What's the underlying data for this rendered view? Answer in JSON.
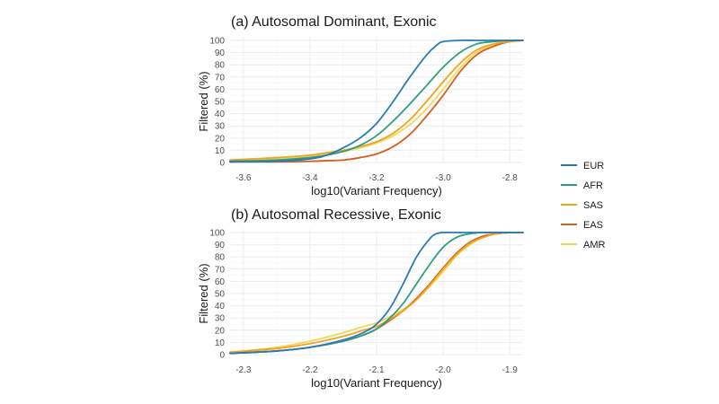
{
  "colors": {
    "EUR": "#2a7ab5",
    "AFR": "#2e9e83",
    "SAS": "#f2a21c",
    "EAS": "#d35f1e",
    "AMR": "#eed85a"
  },
  "legend": [
    {
      "label": "EUR",
      "key": "EUR"
    },
    {
      "label": "AFR",
      "key": "AFR"
    },
    {
      "label": "SAS",
      "key": "SAS"
    },
    {
      "label": "EAS",
      "key": "EAS"
    },
    {
      "label": "AMR",
      "key": "AMR"
    }
  ],
  "chart_data": [
    {
      "type": "line",
      "title": "(a) Autosomal Dominant, Exonic",
      "xlabel": "log10(Variant Frequency)",
      "ylabel": "Filtered (%)",
      "xlim": [
        -3.64,
        -2.76
      ],
      "ylim": [
        0,
        100
      ],
      "xticks": [
        -3.6,
        -3.4,
        -3.2,
        -3.0,
        -2.8
      ],
      "xtick_labels": [
        "-3.6",
        "-3.4",
        "-3.2",
        "-3.0",
        "-2.8"
      ],
      "yticks": [
        0,
        10,
        20,
        30,
        40,
        50,
        60,
        70,
        80,
        90,
        100
      ],
      "grid": true,
      "legend_position": "right",
      "series": [
        {
          "name": "EUR",
          "x": [
            -3.64,
            -3.5,
            -3.4,
            -3.35,
            -3.3,
            -3.25,
            -3.2,
            -3.15,
            -3.1,
            -3.05,
            -3.02,
            -3.0,
            -2.95,
            -2.9,
            -2.8,
            -2.76
          ],
          "y": [
            0.5,
            1,
            3,
            6,
            12,
            20,
            32,
            50,
            70,
            88,
            96,
            99,
            100,
            100,
            100,
            100
          ]
        },
        {
          "name": "AFR",
          "x": [
            -3.64,
            -3.5,
            -3.4,
            -3.35,
            -3.3,
            -3.25,
            -3.2,
            -3.15,
            -3.1,
            -3.05,
            -3.0,
            -2.95,
            -2.9,
            -2.85,
            -2.8,
            -2.76
          ],
          "y": [
            1,
            2,
            4,
            6,
            9,
            14,
            22,
            34,
            48,
            63,
            78,
            90,
            97,
            99,
            100,
            100
          ]
        },
        {
          "name": "SAS",
          "x": [
            -3.64,
            -3.5,
            -3.4,
            -3.35,
            -3.3,
            -3.25,
            -3.2,
            -3.15,
            -3.1,
            -3.05,
            -3.0,
            -2.95,
            -2.9,
            -2.85,
            -2.8,
            -2.76
          ],
          "y": [
            2,
            4,
            6,
            8,
            10,
            13,
            17,
            24,
            35,
            50,
            66,
            81,
            92,
            97,
            99,
            100
          ]
        },
        {
          "name": "EAS",
          "x": [
            -3.64,
            -3.5,
            -3.4,
            -3.35,
            -3.3,
            -3.25,
            -3.2,
            -3.15,
            -3.1,
            -3.05,
            -3.0,
            -2.95,
            -2.9,
            -2.85,
            -2.8,
            -2.76
          ],
          "y": [
            0.5,
            0.5,
            1,
            1.5,
            2,
            4,
            7,
            13,
            23,
            38,
            55,
            74,
            88,
            95,
            99,
            100
          ]
        },
        {
          "name": "AMR",
          "x": [
            -3.64,
            -3.5,
            -3.4,
            -3.35,
            -3.3,
            -3.25,
            -3.2,
            -3.15,
            -3.1,
            -3.05,
            -3.0,
            -2.95,
            -2.9,
            -2.85,
            -2.8,
            -2.76
          ],
          "y": [
            1.5,
            3,
            5,
            7,
            9,
            12,
            16,
            22,
            31,
            44,
            60,
            77,
            90,
            96,
            99,
            100
          ]
        }
      ]
    },
    {
      "type": "line",
      "title": "(b) Autosomal Recessive, Exonic",
      "xlabel": "log10(Variant Frequency)",
      "ylabel": "Filtered (%)",
      "xlim": [
        -2.32,
        -1.88
      ],
      "ylim": [
        0,
        100
      ],
      "xticks": [
        -2.3,
        -2.2,
        -2.1,
        -2.0,
        -1.9
      ],
      "xtick_labels": [
        "-2.3",
        "-2.2",
        "-2.1",
        "-2.0",
        "-1.9"
      ],
      "yticks": [
        0,
        10,
        20,
        30,
        40,
        50,
        60,
        70,
        80,
        90,
        100
      ],
      "grid": true,
      "legend_position": "right",
      "series": [
        {
          "name": "EUR",
          "x": [
            -2.32,
            -2.25,
            -2.2,
            -2.15,
            -2.12,
            -2.1,
            -2.08,
            -2.06,
            -2.04,
            -2.02,
            -2.01,
            -2.0,
            -1.98,
            -1.9,
            -1.88
          ],
          "y": [
            1,
            3,
            6,
            12,
            18,
            25,
            38,
            58,
            80,
            95,
            99,
            100,
            100,
            100,
            100
          ]
        },
        {
          "name": "AFR",
          "x": [
            -2.32,
            -2.25,
            -2.2,
            -2.15,
            -2.12,
            -2.1,
            -2.08,
            -2.06,
            -2.04,
            -2.02,
            -2.0,
            -1.98,
            -1.96,
            -1.94,
            -1.9,
            -1.88
          ],
          "y": [
            1,
            3,
            6,
            11,
            16,
            21,
            30,
            42,
            58,
            74,
            88,
            96,
            99,
            100,
            100,
            100
          ]
        },
        {
          "name": "SAS",
          "x": [
            -2.32,
            -2.25,
            -2.2,
            -2.15,
            -2.12,
            -2.1,
            -2.08,
            -2.06,
            -2.04,
            -2.02,
            -2.0,
            -1.98,
            -1.96,
            -1.94,
            -1.92,
            -1.9,
            -1.88
          ],
          "y": [
            2,
            5,
            9,
            15,
            20,
            23,
            29,
            36,
            45,
            57,
            70,
            82,
            91,
            96,
            99,
            100,
            100
          ]
        },
        {
          "name": "EAS",
          "x": [
            -2.32,
            -2.25,
            -2.2,
            -2.15,
            -2.12,
            -2.1,
            -2.08,
            -2.06,
            -2.04,
            -2.02,
            -2.0,
            -1.98,
            -1.96,
            -1.94,
            -1.92,
            -1.9,
            -1.88
          ],
          "y": [
            1,
            3,
            6,
            11,
            16,
            21,
            28,
            36,
            46,
            58,
            71,
            83,
            92,
            97,
            99,
            100,
            100
          ]
        },
        {
          "name": "AMR",
          "x": [
            -2.32,
            -2.25,
            -2.2,
            -2.15,
            -2.12,
            -2.1,
            -2.08,
            -2.06,
            -2.04,
            -2.02,
            -2.0,
            -1.98,
            -1.96,
            -1.94,
            -1.92,
            -1.9,
            -1.88
          ],
          "y": [
            2,
            6,
            11,
            18,
            23,
            26,
            31,
            37,
            45,
            56,
            68,
            81,
            90,
            96,
            99,
            100,
            100
          ]
        }
      ]
    }
  ]
}
